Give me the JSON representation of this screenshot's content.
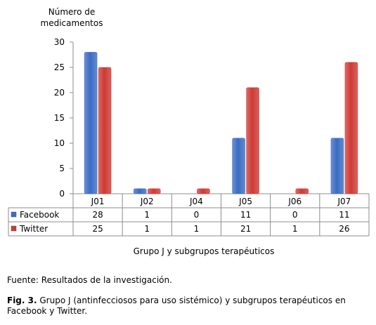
{
  "chart_data": {
    "type": "bar",
    "ylabel": "Número de medicamentos",
    "ylabel_lines": [
      "Número de",
      "medicamentos"
    ],
    "xlabel": "Grupo J y subgrupos terapéuticos",
    "categories": [
      "J01",
      "J02",
      "J04",
      "J05",
      "J06",
      "J07"
    ],
    "yticks": [
      0,
      5,
      10,
      15,
      20,
      25,
      30
    ],
    "ylim": [
      0,
      30
    ],
    "grid": false,
    "legend": "left-table",
    "series": [
      {
        "name": "Facebook",
        "color": "#3a6cc4",
        "values": [
          28,
          1,
          0,
          11,
          0,
          11
        ]
      },
      {
        "name": "Twitter",
        "color": "#cf3a34",
        "values": [
          25,
          1,
          1,
          21,
          1,
          26
        ]
      }
    ]
  },
  "source": "Fuente: Resultados de la investigación.",
  "figure_caption": {
    "label": "Fig. 3.",
    "text": " Grupo J (antinfecciosos para uso sistémico) y subgrupos terapéuticos en Facebook y Twitter."
  }
}
